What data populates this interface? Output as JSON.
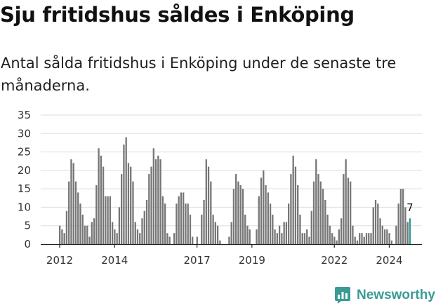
{
  "title": "Sju fritidshus såldes i Enköping",
  "subtitle": "Antal sålda fritidshus i Enköping under de senaste tre månaderna.",
  "brand": {
    "name": "Newsworthy",
    "logo_icon": "newsworthy-logo-icon"
  },
  "colors": {
    "bar": "#767676",
    "highlight": "#2a9a93",
    "grid": "#dedede",
    "axis": "#222222"
  },
  "chart_data": {
    "type": "bar",
    "x_unit": "month",
    "start": "2012-01",
    "ylim": [
      0,
      35
    ],
    "yticks": [
      0,
      5,
      10,
      15,
      20,
      25,
      30,
      35
    ],
    "xticks": [
      {
        "label": "2012",
        "year": 2012
      },
      {
        "label": "2014",
        "year": 2014
      },
      {
        "label": "2017",
        "year": 2017
      },
      {
        "label": "2019",
        "year": 2019
      },
      {
        "label": "2022",
        "year": 2022
      },
      {
        "label": "2024",
        "year": 2024
      }
    ],
    "values": [
      5,
      4,
      3,
      9,
      17,
      23,
      22,
      17,
      14,
      11,
      8,
      5,
      5,
      2,
      6,
      7,
      16,
      26,
      24,
      21,
      13,
      13,
      13,
      6,
      4,
      3,
      10,
      19,
      27,
      29,
      22,
      21,
      17,
      6,
      4,
      3,
      7,
      9,
      12,
      19,
      21,
      26,
      23,
      24,
      23,
      13,
      11,
      3,
      2,
      0,
      3,
      11,
      13,
      14,
      14,
      11,
      11,
      8,
      2,
      0,
      2,
      0,
      8,
      12,
      23,
      21,
      17,
      8,
      6,
      5,
      1,
      0,
      0,
      0,
      2,
      6,
      15,
      19,
      17,
      16,
      15,
      8,
      5,
      4,
      0,
      0,
      4,
      13,
      18,
      20,
      16,
      14,
      11,
      8,
      4,
      3,
      5,
      3,
      6,
      6,
      11,
      19,
      24,
      21,
      16,
      8,
      3,
      3,
      4,
      2,
      9,
      17,
      23,
      19,
      17,
      15,
      12,
      8,
      5,
      3,
      2,
      1,
      4,
      7,
      19,
      23,
      18,
      17,
      5,
      2,
      1,
      3,
      3,
      2,
      3,
      3,
      3,
      10,
      12,
      11,
      7,
      5,
      4,
      4,
      3,
      1,
      0,
      5,
      11,
      15,
      15,
      10,
      6,
      7
    ],
    "highlight_count": 1,
    "annotations": [
      {
        "label": "7",
        "at": "last"
      }
    ]
  }
}
